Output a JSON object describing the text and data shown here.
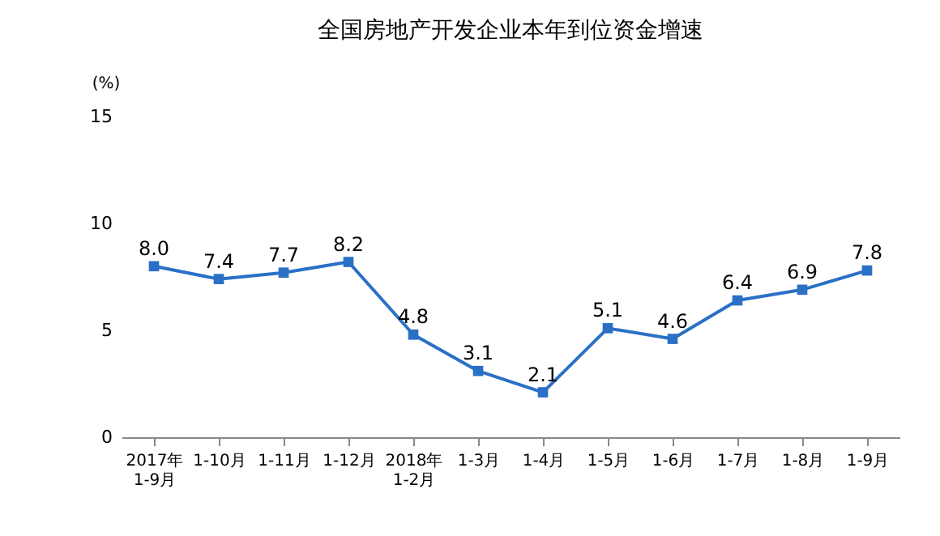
{
  "chart_data": {
    "type": "line",
    "title": "全国房地产开发企业本年到位资金增速",
    "ylabel": "(%)",
    "categories": [
      "2017年 1-9月",
      "1-10月",
      "1-11月",
      "1-12月",
      "2018年 1-2月",
      "1-3月",
      "1-4月",
      "1-5月",
      "1-6月",
      "1-7月",
      "1-8月",
      "1-9月"
    ],
    "series": [
      {
        "color": "#2a70c6",
        "values": [
          8.0,
          7.4,
          7.7,
          8.2,
          4.8,
          3.1,
          2.1,
          5.1,
          4.6,
          6.4,
          6.9,
          7.8
        ],
        "value_labels": [
          "8.0",
          "7.4",
          "7.7",
          "8.2",
          "4.8",
          "3.1",
          "2.1",
          "5.1",
          "4.6",
          "6.4",
          "6.9",
          "7.8"
        ]
      }
    ],
    "ylim": [
      0,
      15
    ],
    "yticks": [
      0,
      5,
      10,
      15
    ],
    "grid": false,
    "marker": "square",
    "line_style": "solid"
  }
}
